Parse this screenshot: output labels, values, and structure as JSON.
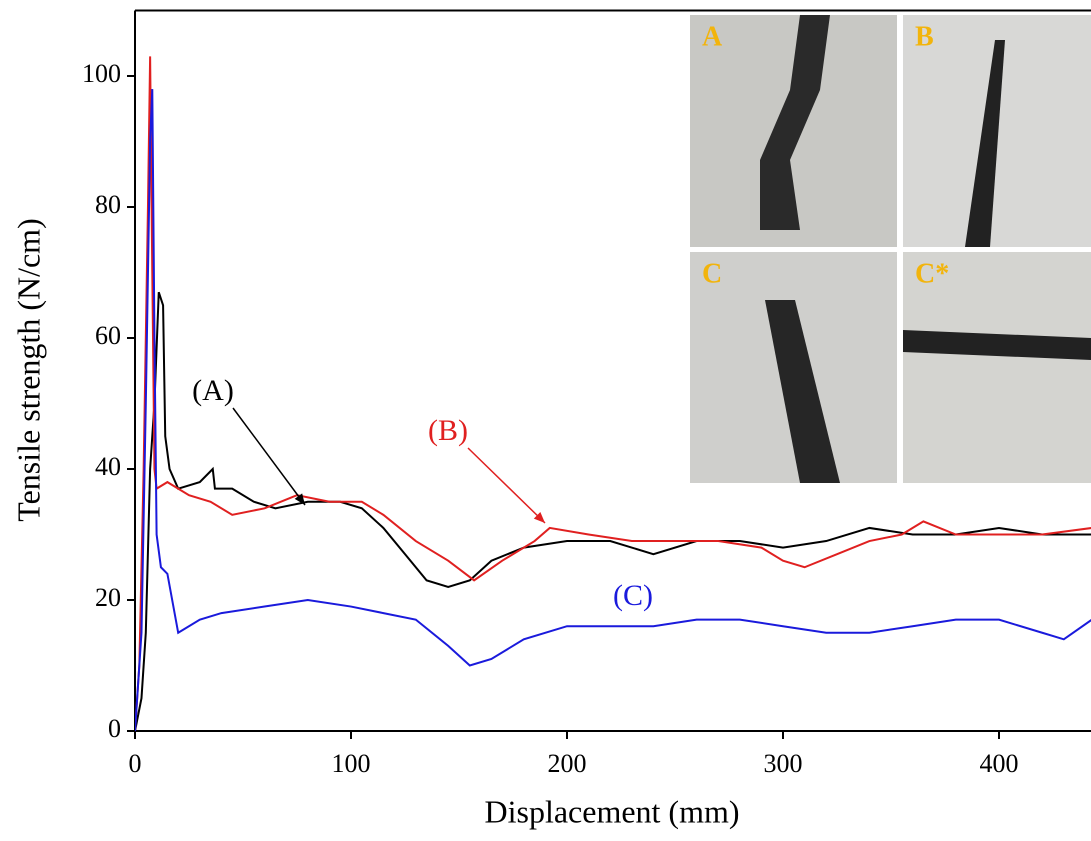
{
  "chart_data": {
    "type": "line",
    "x_label": "Displacement (mm)",
    "y_label": "Tensile strength (N/cm)",
    "xlim": [
      0,
      443
    ],
    "xticks": [
      0,
      100,
      200,
      300,
      400
    ],
    "ylim": [
      0,
      110
    ],
    "yticks": [
      0,
      20,
      40,
      60,
      80,
      100
    ],
    "series": [
      {
        "name": "(A)",
        "color": "#000000",
        "x": [
          0,
          3,
          5,
          7,
          9,
          11,
          13,
          14,
          16,
          20,
          30,
          36,
          37,
          45,
          55,
          65,
          80,
          95,
          105,
          115,
          125,
          135,
          145,
          155,
          165,
          180,
          200,
          220,
          240,
          260,
          280,
          300,
          320,
          340,
          360,
          380,
          400,
          420,
          443
        ],
        "values": [
          0,
          5,
          15,
          40,
          50,
          67,
          65,
          45,
          40,
          37,
          38,
          40,
          37,
          37,
          35,
          34,
          35,
          35,
          34,
          31,
          27,
          23,
          22,
          23,
          26,
          28,
          29,
          29,
          27,
          29,
          29,
          28,
          29,
          31,
          30,
          30,
          31,
          30,
          30
        ]
      },
      {
        "name": "(B)",
        "color": "#e02020",
        "x": [
          0,
          2,
          4,
          6,
          7,
          8,
          9,
          10,
          15,
          25,
          35,
          45,
          60,
          75,
          90,
          105,
          115,
          130,
          145,
          157,
          170,
          185,
          192,
          210,
          230,
          250,
          270,
          290,
          300,
          310,
          325,
          340,
          355,
          365,
          380,
          400,
          420,
          443
        ],
        "values": [
          0,
          10,
          40,
          80,
          103,
          70,
          40,
          37,
          38,
          36,
          35,
          33,
          34,
          36,
          35,
          35,
          33,
          29,
          26,
          23,
          26,
          29,
          31,
          30,
          29,
          29,
          29,
          28,
          26,
          25,
          27,
          29,
          30,
          32,
          30,
          30,
          30,
          31
        ]
      },
      {
        "name": "(C)",
        "color": "#1a1adc",
        "x": [
          0,
          3,
          5,
          7,
          8,
          9,
          10,
          12,
          15,
          20,
          30,
          40,
          60,
          80,
          100,
          115,
          130,
          145,
          155,
          165,
          180,
          200,
          220,
          240,
          260,
          280,
          300,
          320,
          340,
          360,
          380,
          400,
          420,
          430,
          443
        ],
        "values": [
          0,
          15,
          50,
          90,
          98,
          60,
          30,
          25,
          24,
          15,
          17,
          18,
          19,
          20,
          19,
          18,
          17,
          13,
          10,
          11,
          14,
          16,
          16,
          16,
          17,
          17,
          16,
          15,
          15,
          16,
          17,
          17,
          15,
          14,
          17
        ]
      }
    ],
    "insets": [
      "A",
      "B",
      "C",
      "C*"
    ]
  }
}
